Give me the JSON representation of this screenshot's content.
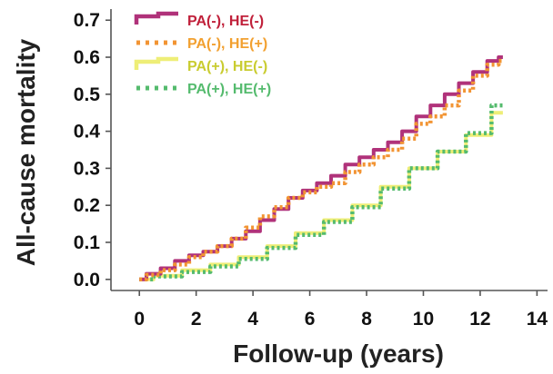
{
  "chart_data": {
    "type": "line",
    "title": "",
    "xlabel": "Follow-up (years)",
    "ylabel": "All-cause mortality",
    "xlim": [
      -1,
      14.5
    ],
    "ylim": [
      -0.03,
      0.73
    ],
    "xticks": [
      0,
      2,
      4,
      6,
      8,
      10,
      12,
      14
    ],
    "yticks": [
      0.0,
      0.1,
      0.2,
      0.3,
      0.4,
      0.5,
      0.6,
      0.7
    ],
    "ytick_labels": [
      "0.0",
      "0.1",
      "0.2",
      "0.3",
      "0.4",
      "0.5",
      "0.6",
      "0.7"
    ],
    "grid": false,
    "legend_position": "top-left",
    "series": [
      {
        "name": "PA(-), HE(-)",
        "color": "#b0327a",
        "style": "solid",
        "x": [
          0,
          0.5,
          1,
          1.5,
          2,
          2.5,
          3,
          3.5,
          4,
          4.5,
          5,
          5.5,
          6,
          6.5,
          7,
          7.5,
          8,
          8.5,
          9,
          9.5,
          10,
          10.5,
          11,
          11.5,
          12,
          12.5,
          12.8
        ],
        "y": [
          0,
          0.015,
          0.03,
          0.05,
          0.065,
          0.075,
          0.09,
          0.11,
          0.13,
          0.16,
          0.19,
          0.22,
          0.24,
          0.26,
          0.28,
          0.31,
          0.33,
          0.35,
          0.37,
          0.4,
          0.44,
          0.47,
          0.5,
          0.53,
          0.56,
          0.59,
          0.6
        ]
      },
      {
        "name": "PA(-), HE(+)",
        "color": "#f29433",
        "style": "dotted",
        "x": [
          0,
          0.5,
          1,
          1.5,
          2,
          2.5,
          3,
          3.5,
          4,
          4.5,
          5,
          5.5,
          6,
          6.5,
          7,
          7.5,
          8,
          8.5,
          9,
          9.5,
          10,
          10.5,
          11,
          11.5,
          12,
          12.5,
          12.8
        ],
        "y": [
          0,
          0.012,
          0.025,
          0.04,
          0.06,
          0.075,
          0.09,
          0.11,
          0.14,
          0.17,
          0.195,
          0.22,
          0.235,
          0.25,
          0.26,
          0.29,
          0.31,
          0.33,
          0.35,
          0.38,
          0.42,
          0.44,
          0.47,
          0.51,
          0.55,
          0.58,
          0.59
        ]
      },
      {
        "name": "PA(+), HE(-)",
        "color": "#eeee77",
        "style": "solid",
        "x": [
          0,
          1,
          2,
          3,
          4,
          5,
          6,
          7,
          8,
          9,
          10,
          11,
          12,
          12.8
        ],
        "y": [
          0,
          0.01,
          0.025,
          0.04,
          0.06,
          0.09,
          0.125,
          0.16,
          0.2,
          0.25,
          0.3,
          0.345,
          0.39,
          0.45
        ]
      },
      {
        "name": "PA(+), HE(+)",
        "color": "#55bb6e",
        "style": "dotted",
        "x": [
          0,
          1,
          2,
          3,
          4,
          5,
          6,
          7,
          8,
          9,
          10,
          11,
          12,
          12.8
        ],
        "y": [
          0,
          0.008,
          0.02,
          0.035,
          0.055,
          0.085,
          0.12,
          0.155,
          0.195,
          0.245,
          0.3,
          0.345,
          0.395,
          0.47
        ]
      }
    ]
  }
}
